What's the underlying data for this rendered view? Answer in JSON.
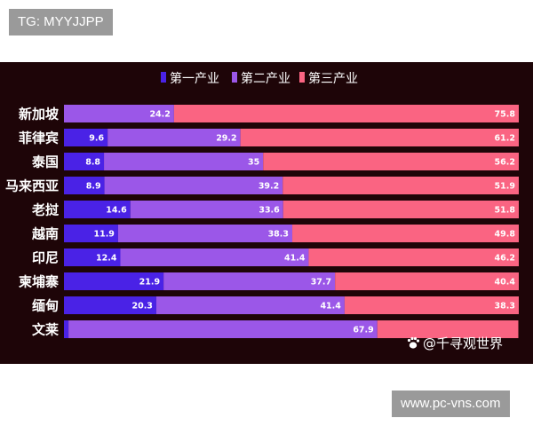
{
  "top_tag": "TG: MYYJJPP",
  "bottom_tag": "www.pc-vns.com",
  "watermark": "@千寻观世界",
  "chart_data": {
    "type": "bar",
    "orientation": "horizontal",
    "stacked": true,
    "categories": [
      "新加坡",
      "菲律宾",
      "泰国",
      "马来西亚",
      "老挝",
      "越南",
      "印尼",
      "柬埔寨",
      "缅甸",
      "文莱"
    ],
    "series": [
      {
        "name": "第一产业",
        "color": "#4a22e6",
        "values": [
          0,
          9.6,
          8.8,
          8.9,
          14.6,
          11.9,
          12.4,
          21.9,
          20.3,
          1
        ]
      },
      {
        "name": "第二产业",
        "color": "#9b57e8",
        "values": [
          24.2,
          29.2,
          35,
          39.2,
          33.6,
          38.3,
          41.4,
          37.7,
          41.4,
          67.9
        ]
      },
      {
        "name": "第三产业",
        "color": "#fa6482",
        "values": [
          75.8,
          61.2,
          56.2,
          51.9,
          51.8,
          49.8,
          46.2,
          40.4,
          38.3,
          31
        ]
      }
    ],
    "labels": [
      [
        "",
        "24.2",
        "75.8"
      ],
      [
        "9.6",
        "29.2",
        "61.2"
      ],
      [
        "8.8",
        "35",
        "56.2"
      ],
      [
        "8.9",
        "39.2",
        "51.9"
      ],
      [
        "14.6",
        "33.6",
        "51.8"
      ],
      [
        "11.9",
        "38.3",
        "49.8"
      ],
      [
        "12.4",
        "41.4",
        "46.2"
      ],
      [
        "21.9",
        "37.7",
        "40.4"
      ],
      [
        "20.3",
        "41.4",
        "38.3"
      ],
      [
        "",
        "67.9",
        ""
      ]
    ],
    "legend_position": "top-center",
    "xlim": [
      0,
      100
    ]
  }
}
